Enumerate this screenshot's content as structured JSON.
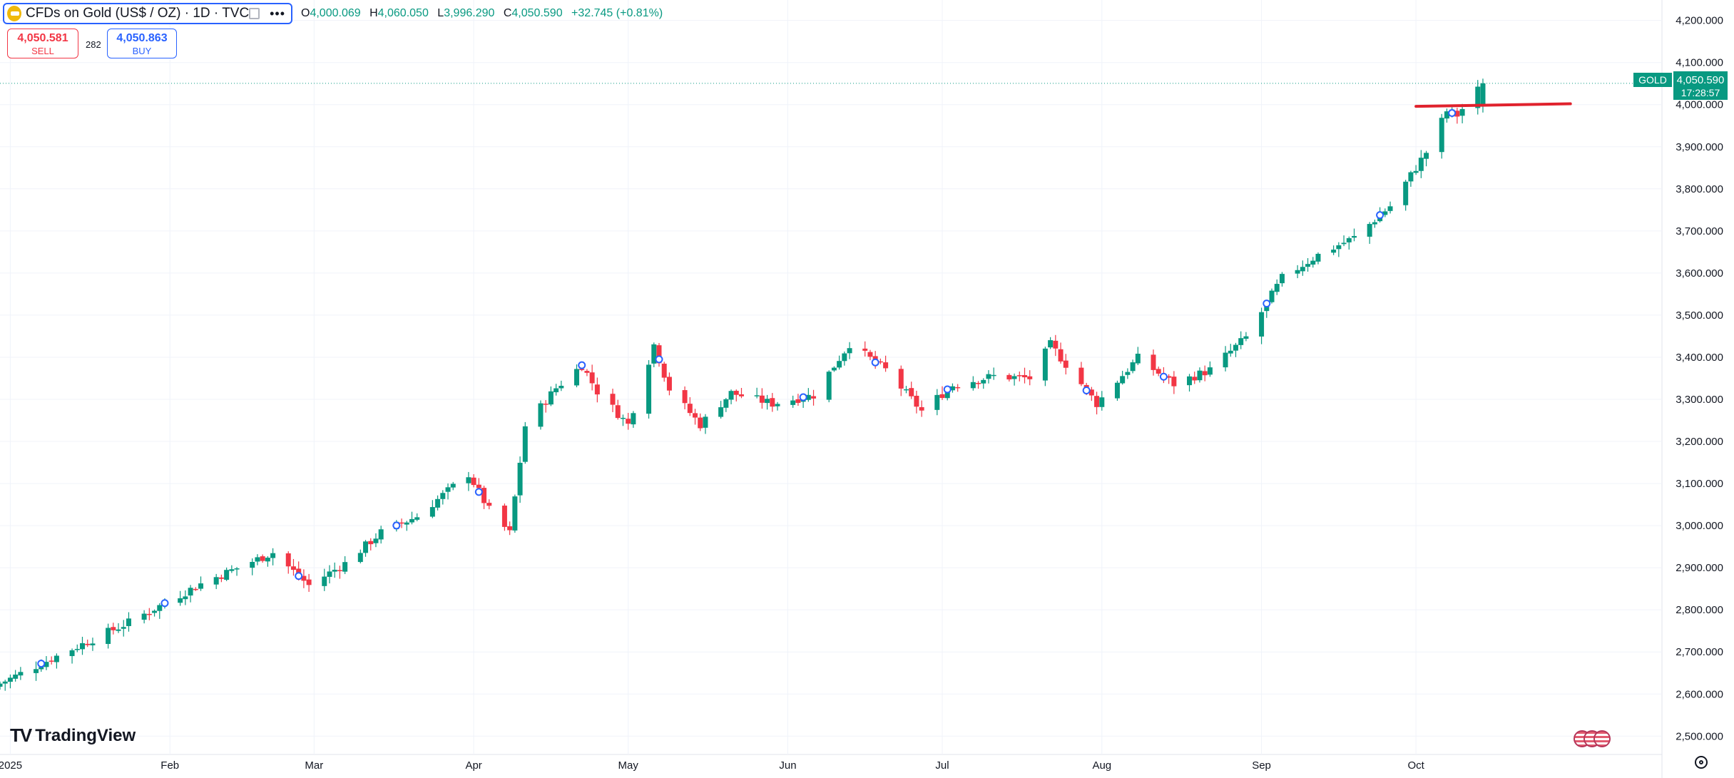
{
  "header": {
    "title": "CFDs on Gold (US$ / OZ) · 1D · TVC",
    "more_label": "•••",
    "ohlc": {
      "o_label": "O",
      "o_value": "4,000.069",
      "h_label": "H",
      "h_value": "4,060.050",
      "l_label": "L",
      "l_value": "3,996.290",
      "c_label": "C",
      "c_value": "4,050.590",
      "change": "+32.745 (+0.81%)"
    }
  },
  "trade": {
    "sell_price": "4,050.581",
    "sell_label": "SELL",
    "spread": "282",
    "buy_price": "4,050.863",
    "buy_label": "BUY"
  },
  "branding": {
    "name": "TradingView"
  },
  "last_price": {
    "symbol": "GOLD",
    "price": "4,050.590",
    "countdown": "17:28:57"
  },
  "colors": {
    "up": "#089981",
    "down": "#f23645",
    "accent": "#2962ff",
    "annotation": "#e0222d"
  },
  "chart_data": {
    "type": "candlestick",
    "interval": "1D",
    "y_axis": {
      "min": 2470,
      "max": 4235,
      "ticks": [
        2500,
        2600,
        2700,
        2800,
        2900,
        3000,
        3100,
        3200,
        3300,
        3400,
        3500,
        3600,
        3700,
        3800,
        3900,
        4000,
        4100,
        4200
      ],
      "tick_labels": [
        "2,500.000",
        "2,600.000",
        "2,700.000",
        "2,800.000",
        "2,900.000",
        "3,000.000",
        "3,100.000",
        "3,200.000",
        "3,300.000",
        "3,400.000",
        "3,500.000",
        "3,600.000",
        "3,700.000",
        "3,800.000",
        "3,900.000",
        "4,000.000",
        "4,100.000",
        "4,200.000"
      ],
      "position": "right"
    },
    "x_axis": {
      "start": "2024-12-30",
      "end": "2025-11-06",
      "labels": [
        {
          "date": "2025-01-01",
          "label": "2025"
        },
        {
          "date": "2025-02-01",
          "label": "Feb"
        },
        {
          "date": "2025-03-01",
          "label": "Mar"
        },
        {
          "date": "2025-04-01",
          "label": "Apr"
        },
        {
          "date": "2025-05-01",
          "label": "May"
        },
        {
          "date": "2025-06-01",
          "label": "Jun"
        },
        {
          "date": "2025-07-01",
          "label": "Jul"
        },
        {
          "date": "2025-08-01",
          "label": "Aug"
        },
        {
          "date": "2025-09-01",
          "label": "Sep"
        },
        {
          "date": "2025-10-01",
          "label": "Oct"
        }
      ]
    },
    "grid": true,
    "close_path": [
      {
        "date": "2024-12-30",
        "value": 2625
      },
      {
        "date": "2025-01-10",
        "value": 2690
      },
      {
        "date": "2025-01-24",
        "value": 2770
      },
      {
        "date": "2025-02-07",
        "value": 2862
      },
      {
        "date": "2025-02-21",
        "value": 2936
      },
      {
        "date": "2025-02-28",
        "value": 2858
      },
      {
        "date": "2025-03-07",
        "value": 2910
      },
      {
        "date": "2025-03-14",
        "value": 2984
      },
      {
        "date": "2025-03-21",
        "value": 3022
      },
      {
        "date": "2025-03-31",
        "value": 3123
      },
      {
        "date": "2025-04-04",
        "value": 3037
      },
      {
        "date": "2025-04-08",
        "value": 2982
      },
      {
        "date": "2025-04-11",
        "value": 3237
      },
      {
        "date": "2025-04-17",
        "value": 3327
      },
      {
        "date": "2025-04-22",
        "value": 3381
      },
      {
        "date": "2025-04-25",
        "value": 3319
      },
      {
        "date": "2025-05-01",
        "value": 3240
      },
      {
        "date": "2025-05-06",
        "value": 3430
      },
      {
        "date": "2025-05-09",
        "value": 3325
      },
      {
        "date": "2025-05-15",
        "value": 3240
      },
      {
        "date": "2025-05-21",
        "value": 3315
      },
      {
        "date": "2025-05-29",
        "value": 3290
      },
      {
        "date": "2025-06-06",
        "value": 3310
      },
      {
        "date": "2025-06-13",
        "value": 3432
      },
      {
        "date": "2025-06-20",
        "value": 3370
      },
      {
        "date": "2025-06-27",
        "value": 3272
      },
      {
        "date": "2025-07-03",
        "value": 3334
      },
      {
        "date": "2025-07-11",
        "value": 3355
      },
      {
        "date": "2025-07-18",
        "value": 3350
      },
      {
        "date": "2025-07-22",
        "value": 3430
      },
      {
        "date": "2025-07-31",
        "value": 3290
      },
      {
        "date": "2025-08-08",
        "value": 3398
      },
      {
        "date": "2025-08-15",
        "value": 3336
      },
      {
        "date": "2025-08-22",
        "value": 3370
      },
      {
        "date": "2025-08-29",
        "value": 3447
      },
      {
        "date": "2025-09-05",
        "value": 3588
      },
      {
        "date": "2025-09-12",
        "value": 3643
      },
      {
        "date": "2025-09-19",
        "value": 3684
      },
      {
        "date": "2025-09-26",
        "value": 3759
      },
      {
        "date": "2025-10-03",
        "value": 3887
      },
      {
        "date": "2025-10-07",
        "value": 3985
      },
      {
        "date": "2025-10-09",
        "value": 3975
      },
      {
        "date": "2025-10-14",
        "value": 4050
      }
    ],
    "event_markers": [
      "2025-01-07",
      "2025-01-31",
      "2025-02-26",
      "2025-03-17",
      "2025-04-02",
      "2025-04-22",
      "2025-05-07",
      "2025-06-04",
      "2025-06-18",
      "2025-07-02",
      "2025-07-29",
      "2025-08-13",
      "2025-09-02",
      "2025-09-24",
      "2025-10-08"
    ],
    "horizontal_ray": {
      "start_date": "2025-10-01",
      "end_date": "2025-10-31",
      "start_value": 3996,
      "end_value": 4002
    },
    "last_price_line": 4050.59
  }
}
